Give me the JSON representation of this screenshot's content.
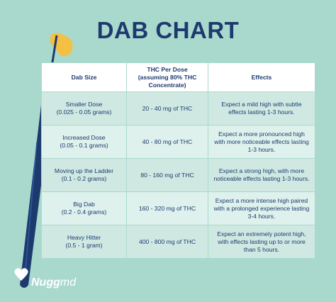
{
  "header": {
    "title": "DAB CHART"
  },
  "table": {
    "columns": [
      "Dab Size",
      "THC Per Dose (assuming 80% THC Concentrate)",
      "Effects"
    ],
    "rows": [
      {
        "name": "Smaller Dose",
        "amount": "(0.025 - 0.05 grams)",
        "thc": "20 - 40 mg of THC",
        "effects": "Expect a mild high with subtle effects lasting 1-3 hours."
      },
      {
        "name": "Increased Dose",
        "amount": "(0.05 - 0.1 grams)",
        "thc": "40 - 80 mg of THC",
        "effects": "Expect a more pronounced high with more noticeable effects lasting 1-3 hours."
      },
      {
        "name": "Moving up the Ladder",
        "amount": "(0.1 - 0.2 grams)",
        "thc": "80 - 160 mg of THC",
        "effects": "Expect a strong high, with more noticeable effects lasting 1-3 hours."
      },
      {
        "name": "Big Dab",
        "amount": "(0.2 - 0.4 grams)",
        "thc": "160 - 320 mg of THC",
        "effects": "Expect a more intense high paired with a prolonged experience lasting 3-4 hours."
      },
      {
        "name": "Heavy Hitter",
        "amount": "(0.5 - 1 gram)",
        "thc": "400 - 800 mg of THC",
        "effects": "Expect an extremely potent high, with effects lasting up to or more than 5 hours."
      }
    ]
  },
  "logo": {
    "brand": "Nugg",
    "suffix": "md"
  }
}
